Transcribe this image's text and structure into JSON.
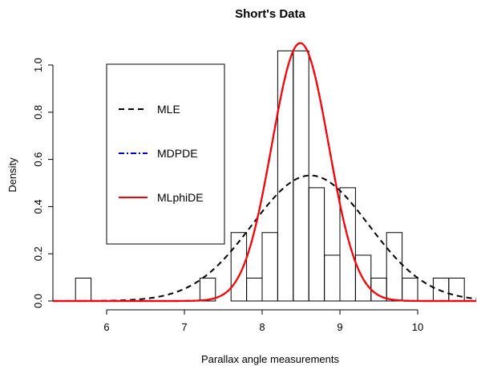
{
  "chart_data": {
    "type": "histogram_with_density_curves",
    "title": "Short's Data",
    "xlabel": "Parallax angle measurements",
    "ylabel": "Density",
    "xlim": [
      5.4,
      10.8
    ],
    "ylim": [
      0,
      1.1
    ],
    "x_ticks": [
      6,
      7,
      8,
      9,
      10
    ],
    "y_ticks": [
      0.0,
      0.2,
      0.4,
      0.6,
      0.8,
      1.0
    ],
    "x_tick_labels": [
      "6",
      "7",
      "8",
      "9",
      "10"
    ],
    "y_tick_labels": [
      "0.0",
      "0.2",
      "0.4",
      "0.6",
      "0.8",
      "1.0"
    ],
    "histogram": {
      "bin_edges": [
        5.6,
        5.8,
        6.0,
        6.2,
        6.4,
        6.6,
        6.8,
        7.0,
        7.2,
        7.4,
        7.6,
        7.8,
        8.0,
        8.2,
        8.4,
        8.6,
        8.8,
        9.0,
        9.2,
        9.4,
        9.6,
        9.8,
        10.0,
        10.2,
        10.4,
        10.6
      ],
      "densities": [
        0.097,
        0,
        0,
        0,
        0,
        0,
        0,
        0,
        0.097,
        0,
        0.29,
        0.097,
        0.29,
        1.06,
        1.06,
        0.48,
        0.194,
        0.48,
        0.194,
        0.097,
        0.29,
        0.097,
        0,
        0.097,
        0.097
      ]
    },
    "series": [
      {
        "name": "MLE",
        "distribution": "normal",
        "mean": 8.62,
        "sd": 0.75,
        "color": "#000000",
        "line_style": "dashed"
      },
      {
        "name": "MDPDE",
        "distribution": "normal",
        "mean": 8.49,
        "sd": 0.365,
        "color": "#0000cd",
        "line_style": "dotdash"
      },
      {
        "name": "MLphiDE",
        "distribution": "normal",
        "mean": 8.49,
        "sd": 0.365,
        "color": "#ff0000",
        "line_style": "solid"
      }
    ],
    "legend": {
      "placement": "left",
      "entries": [
        "MLE",
        "MDPDE",
        "MLphiDE"
      ]
    }
  }
}
